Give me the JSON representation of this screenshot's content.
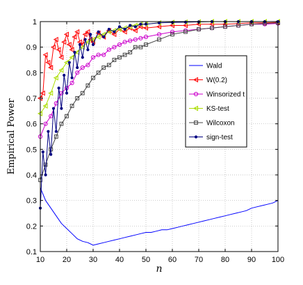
{
  "chart_data": {
    "type": "line",
    "title": "",
    "xlabel": "n",
    "ylabel": "Empirical Power",
    "xlim": [
      10,
      100
    ],
    "ylim": [
      0.1,
      1.0
    ],
    "xticks": [
      "10",
      "20",
      "30",
      "40",
      "50",
      "60",
      "70",
      "80",
      "90",
      "100"
    ],
    "yticks": [
      "0.1",
      "0.2",
      "0.3",
      "0.4",
      "0.5",
      "0.6",
      "0.7",
      "0.8",
      "0.9",
      "1"
    ],
    "grid": true,
    "legend_position": "right",
    "series": [
      {
        "name": "Wald",
        "color": "#0000ff",
        "marker": "none",
        "x": [
          10,
          12,
          14,
          16,
          18,
          20,
          22,
          24,
          26,
          28,
          30,
          32,
          34,
          36,
          38,
          40,
          42,
          44,
          46,
          48,
          50,
          52,
          54,
          56,
          58,
          60,
          62,
          64,
          66,
          68,
          70,
          72,
          74,
          76,
          78,
          80,
          82,
          84,
          86,
          88,
          90,
          92,
          94,
          96,
          98,
          100
        ],
        "y": [
          0.35,
          0.3,
          0.27,
          0.24,
          0.21,
          0.19,
          0.17,
          0.15,
          0.14,
          0.135,
          0.125,
          0.13,
          0.135,
          0.14,
          0.145,
          0.15,
          0.155,
          0.16,
          0.165,
          0.17,
          0.175,
          0.175,
          0.18,
          0.185,
          0.185,
          0.19,
          0.195,
          0.2,
          0.205,
          0.21,
          0.215,
          0.22,
          0.225,
          0.23,
          0.235,
          0.24,
          0.245,
          0.25,
          0.255,
          0.26,
          0.27,
          0.275,
          0.28,
          0.285,
          0.29,
          0.3
        ]
      },
      {
        "name": "W(0.2)",
        "color": "#ff0000",
        "marker": "triangle-left",
        "x": [
          10,
          11,
          12,
          13,
          14,
          15,
          16,
          17,
          18,
          19,
          20,
          21,
          22,
          23,
          24,
          25,
          26,
          27,
          28,
          29,
          30,
          32,
          34,
          36,
          38,
          40,
          42,
          44,
          46,
          48,
          50,
          55,
          60,
          65,
          70,
          75,
          80,
          85,
          90,
          95,
          100
        ],
        "y": [
          0.7,
          0.72,
          0.87,
          0.84,
          0.82,
          0.9,
          0.93,
          0.89,
          0.86,
          0.92,
          0.95,
          0.91,
          0.89,
          0.94,
          0.96,
          0.92,
          0.91,
          0.95,
          0.96,
          0.93,
          0.92,
          0.955,
          0.94,
          0.965,
          0.95,
          0.97,
          0.96,
          0.975,
          0.965,
          0.98,
          0.975,
          0.98,
          0.985,
          0.985,
          0.99,
          0.99,
          0.99,
          0.992,
          0.995,
          0.995,
          0.997
        ]
      },
      {
        "name": "Winsorized t",
        "color": "#cc00cc",
        "marker": "circle",
        "x": [
          10,
          12,
          14,
          16,
          18,
          20,
          22,
          24,
          26,
          28,
          30,
          32,
          34,
          36,
          38,
          40,
          42,
          44,
          46,
          48,
          50,
          55,
          60,
          65,
          70,
          75,
          80,
          85,
          90,
          95,
          100
        ],
        "y": [
          0.55,
          0.6,
          0.63,
          0.68,
          0.72,
          0.74,
          0.76,
          0.8,
          0.82,
          0.83,
          0.86,
          0.87,
          0.87,
          0.89,
          0.9,
          0.91,
          0.92,
          0.925,
          0.93,
          0.935,
          0.94,
          0.95,
          0.96,
          0.965,
          0.97,
          0.975,
          0.98,
          0.985,
          0.99,
          0.99,
          0.993
        ]
      },
      {
        "name": "KS-test",
        "color": "#aadd00",
        "marker": "triangle-left",
        "x": [
          10,
          12,
          14,
          16,
          18,
          20,
          22,
          24,
          26,
          28,
          30,
          32,
          34,
          36,
          38,
          40,
          42,
          44,
          46,
          48,
          50,
          55,
          60,
          65,
          70,
          75,
          80,
          85,
          90,
          95,
          100
        ],
        "y": [
          0.64,
          0.67,
          0.72,
          0.78,
          0.81,
          0.84,
          0.86,
          0.88,
          0.9,
          0.92,
          0.93,
          0.94,
          0.95,
          0.96,
          0.965,
          0.97,
          0.975,
          0.98,
          0.985,
          0.99,
          0.99,
          0.995,
          0.997,
          0.998,
          0.999,
          1.0,
          1.0,
          1.0,
          1.0,
          1.0,
          1.0
        ]
      },
      {
        "name": "Wilcoxon",
        "color": "#444444",
        "marker": "square",
        "x": [
          10,
          12,
          14,
          16,
          18,
          20,
          22,
          24,
          26,
          28,
          30,
          32,
          34,
          36,
          38,
          40,
          42,
          44,
          46,
          48,
          50,
          55,
          60,
          65,
          70,
          75,
          80,
          85,
          90,
          95,
          100
        ],
        "y": [
          0.38,
          0.44,
          0.5,
          0.55,
          0.6,
          0.63,
          0.67,
          0.7,
          0.72,
          0.75,
          0.78,
          0.8,
          0.82,
          0.83,
          0.85,
          0.86,
          0.87,
          0.88,
          0.9,
          0.9,
          0.91,
          0.93,
          0.95,
          0.96,
          0.97,
          0.975,
          0.98,
          0.985,
          0.99,
          0.993,
          0.995
        ]
      },
      {
        "name": "sign-test",
        "color": "#000080",
        "marker": "dot",
        "x": [
          10,
          11,
          12,
          13,
          14,
          15,
          16,
          17,
          18,
          19,
          20,
          21,
          22,
          23,
          24,
          25,
          26,
          27,
          28,
          29,
          30,
          32,
          34,
          36,
          38,
          40,
          42,
          44,
          46,
          48,
          50,
          55,
          60,
          65,
          70,
          75,
          80,
          85,
          90,
          95,
          100
        ],
        "y": [
          0.27,
          0.49,
          0.4,
          0.57,
          0.48,
          0.66,
          0.57,
          0.74,
          0.66,
          0.79,
          0.72,
          0.84,
          0.78,
          0.88,
          0.82,
          0.91,
          0.86,
          0.93,
          0.89,
          0.95,
          0.91,
          0.96,
          0.94,
          0.97,
          0.96,
          0.98,
          0.97,
          0.985,
          0.98,
          0.99,
          0.99,
          0.995,
          0.997,
          0.998,
          0.999,
          1.0,
          1.0,
          1.0,
          1.0,
          1.0,
          1.0
        ]
      }
    ]
  }
}
